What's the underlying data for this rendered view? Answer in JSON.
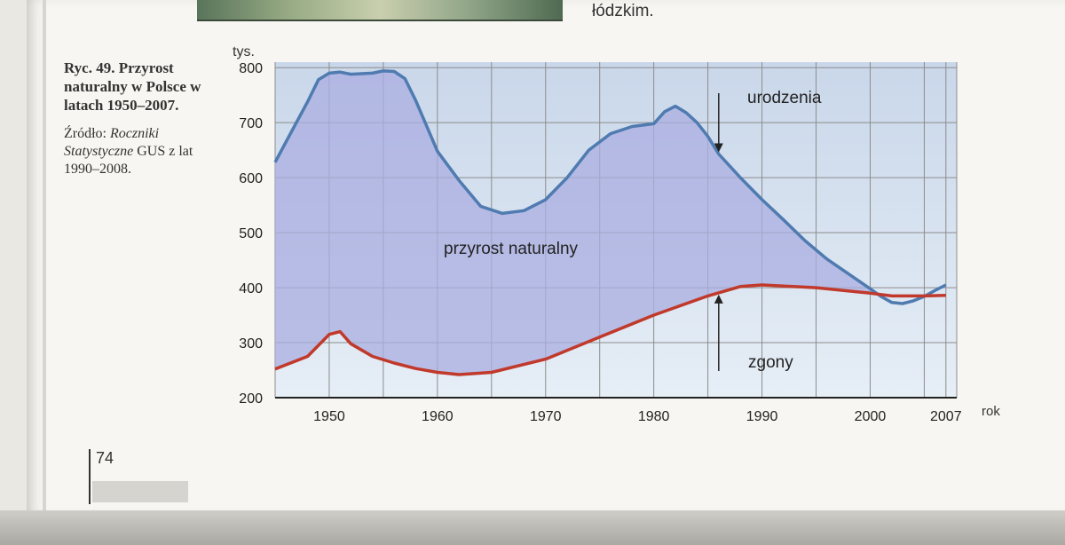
{
  "page": {
    "top_text": "łódzkim.",
    "caption_title": "Ryc. 49. Przyrost naturalny w Polsce w latach 1950–2007.",
    "caption_source_label": "Źródło: ",
    "caption_source_italic": "Roczniki Statystyczne",
    "caption_source_rest": " GUS z lat 1990–2008.",
    "page_number": "74"
  },
  "colors": {
    "births_line": "#4f7bb0",
    "deaths_line": "#c0392b",
    "natural_increase_fill": "#a9aee0",
    "plot_background_top": "#c9d7ea",
    "plot_background_bottom": "#e6eef6",
    "grid": "#8c8c8c"
  },
  "chart_data": {
    "type": "area",
    "title": "",
    "ylabel": "tys.",
    "xlabel": "rok",
    "xlim": [
      1945,
      2008
    ],
    "ylim": [
      200,
      810
    ],
    "x_ticks": [
      1950,
      1960,
      1970,
      1980,
      1990,
      2000,
      2007
    ],
    "x_tick_labels": [
      "1950",
      "1960",
      "1970",
      "1980",
      "1990",
      "2000",
      "2007"
    ],
    "y_ticks": [
      200,
      300,
      400,
      500,
      600,
      700,
      800
    ],
    "y_tick_labels": [
      "200",
      "300",
      "400",
      "500",
      "600",
      "700",
      "800"
    ],
    "grid": true,
    "series": [
      {
        "name": "urodzenia",
        "x": [
          1945,
          1946,
          1948,
          1949,
          1950,
          1951,
          1952,
          1954,
          1955,
          1956,
          1957,
          1958,
          1960,
          1962,
          1964,
          1966,
          1968,
          1970,
          1972,
          1974,
          1976,
          1978,
          1980,
          1981,
          1982,
          1983,
          1984,
          1985,
          1986,
          1988,
          1990,
          1992,
          1994,
          1996,
          1998,
          2000,
          2001,
          2002,
          2003,
          2004,
          2005,
          2006,
          2007
        ],
        "values": [
          628,
          665,
          738,
          778,
          790,
          792,
          788,
          790,
          794,
          793,
          780,
          740,
          648,
          595,
          548,
          535,
          540,
          560,
          600,
          650,
          680,
          693,
          698,
          720,
          730,
          718,
          700,
          675,
          643,
          600,
          560,
          523,
          485,
          452,
          425,
          398,
          384,
          373,
          371,
          376,
          384,
          395,
          405
        ]
      },
      {
        "name": "zgony",
        "x": [
          1945,
          1948,
          1950,
          1951,
          1952,
          1954,
          1956,
          1958,
          1960,
          1962,
          1965,
          1970,
          1975,
          1980,
          1985,
          1988,
          1990,
          1995,
          2000,
          2002,
          2005,
          2007
        ],
        "values": [
          252,
          275,
          315,
          320,
          298,
          275,
          263,
          253,
          246,
          242,
          246,
          270,
          310,
          350,
          385,
          402,
          405,
          400,
          390,
          385,
          385,
          386
        ]
      }
    ],
    "annotations": [
      {
        "text": "urodzenia",
        "points_to_year": 1986,
        "arrow": "down"
      },
      {
        "text": "zgony",
        "points_to_year": 1986,
        "arrow": "up"
      },
      {
        "text": "przyrost naturalny",
        "region": "between series"
      }
    ]
  }
}
